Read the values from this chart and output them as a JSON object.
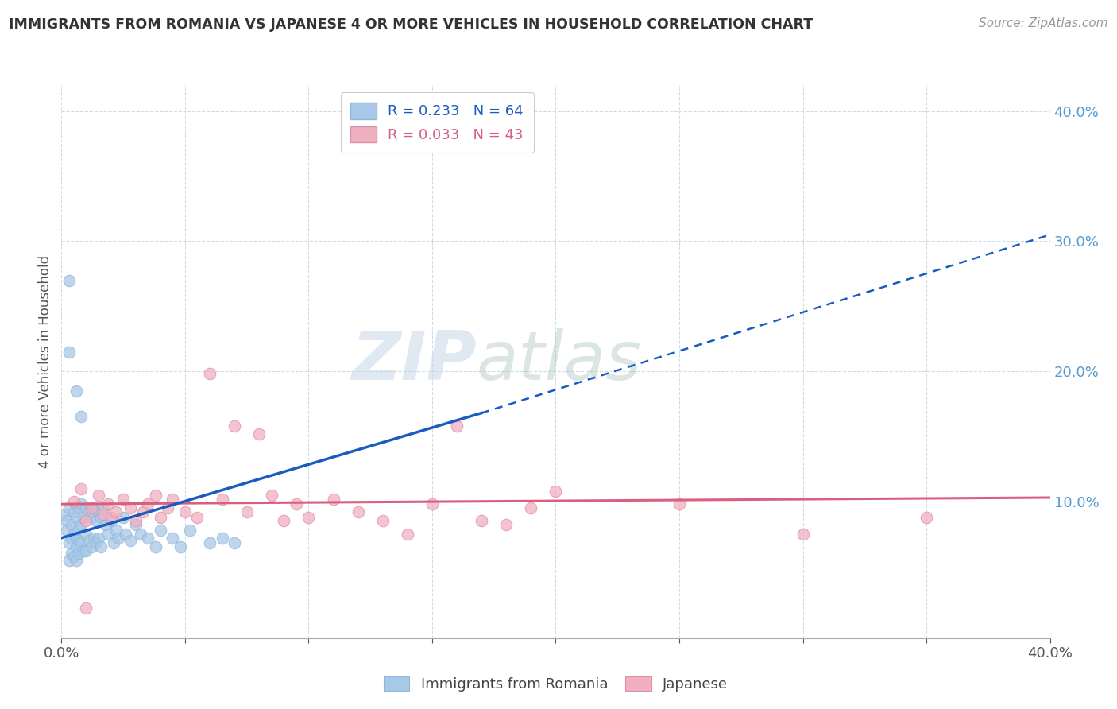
{
  "title": "IMMIGRANTS FROM ROMANIA VS JAPANESE 4 OR MORE VEHICLES IN HOUSEHOLD CORRELATION CHART",
  "source": "Source: ZipAtlas.com",
  "ylabel": "4 or more Vehicles in Household",
  "xlim": [
    0.0,
    0.4
  ],
  "ylim": [
    -0.005,
    0.42
  ],
  "xticks": [
    0.0,
    0.05,
    0.1,
    0.15,
    0.2,
    0.25,
    0.3,
    0.35,
    0.4
  ],
  "xticklabels": [
    "0.0%",
    "",
    "",
    "",
    "",
    "",
    "",
    "",
    "40.0%"
  ],
  "yticks": [
    0.1,
    0.2,
    0.3,
    0.4
  ],
  "yticklabels": [
    "10.0%",
    "20.0%",
    "30.0%",
    "40.0%"
  ],
  "romania_color": "#a8c8e8",
  "japan_color": "#f0b0c0",
  "romania_line_color": "#1a5bbf",
  "japan_line_color": "#d95f7f",
  "romania_R": 0.233,
  "romania_N": 64,
  "japan_R": 0.033,
  "japan_N": 43,
  "watermark_zip": "ZIP",
  "watermark_atlas": "atlas",
  "background_color": "#ffffff",
  "grid_color": "#c8d8e8",
  "romania_line_x0": 0.0,
  "romania_line_y0": 0.072,
  "romania_line_x1": 0.4,
  "romania_line_y1": 0.305,
  "romania_line_solid_x1": 0.17,
  "romania_line_solid_y1": 0.168,
  "japan_line_x0": 0.0,
  "japan_line_y0": 0.098,
  "japan_line_x1": 0.4,
  "japan_line_y1": 0.103,
  "romania_x": [
    0.001,
    0.002,
    0.002,
    0.003,
    0.003,
    0.003,
    0.004,
    0.004,
    0.004,
    0.005,
    0.005,
    0.005,
    0.006,
    0.006,
    0.006,
    0.007,
    0.007,
    0.007,
    0.007,
    0.008,
    0.008,
    0.008,
    0.009,
    0.009,
    0.01,
    0.01,
    0.01,
    0.011,
    0.011,
    0.012,
    0.012,
    0.013,
    0.013,
    0.014,
    0.014,
    0.015,
    0.015,
    0.016,
    0.016,
    0.017,
    0.018,
    0.019,
    0.02,
    0.021,
    0.022,
    0.023,
    0.025,
    0.026,
    0.028,
    0.03,
    0.032,
    0.035,
    0.038,
    0.04,
    0.045,
    0.048,
    0.052,
    0.06,
    0.065,
    0.07,
    0.003,
    0.003,
    0.006,
    0.008
  ],
  "romania_y": [
    0.09,
    0.085,
    0.078,
    0.095,
    0.068,
    0.055,
    0.082,
    0.072,
    0.06,
    0.092,
    0.075,
    0.058,
    0.088,
    0.065,
    0.055,
    0.095,
    0.08,
    0.07,
    0.06,
    0.098,
    0.082,
    0.068,
    0.088,
    0.062,
    0.095,
    0.075,
    0.062,
    0.092,
    0.07,
    0.088,
    0.065,
    0.095,
    0.072,
    0.085,
    0.068,
    0.092,
    0.072,
    0.088,
    0.065,
    0.095,
    0.082,
    0.075,
    0.085,
    0.068,
    0.078,
    0.072,
    0.088,
    0.075,
    0.07,
    0.082,
    0.075,
    0.072,
    0.065,
    0.078,
    0.072,
    0.065,
    0.078,
    0.068,
    0.072,
    0.068,
    0.27,
    0.215,
    0.185,
    0.165
  ],
  "japan_x": [
    0.005,
    0.008,
    0.01,
    0.012,
    0.015,
    0.017,
    0.019,
    0.02,
    0.022,
    0.025,
    0.028,
    0.03,
    0.033,
    0.035,
    0.038,
    0.04,
    0.043,
    0.045,
    0.05,
    0.055,
    0.06,
    0.065,
    0.07,
    0.075,
    0.08,
    0.085,
    0.09,
    0.095,
    0.1,
    0.11,
    0.12,
    0.13,
    0.14,
    0.15,
    0.16,
    0.17,
    0.18,
    0.19,
    0.2,
    0.25,
    0.3,
    0.35,
    0.01
  ],
  "japan_y": [
    0.1,
    0.11,
    0.085,
    0.095,
    0.105,
    0.09,
    0.098,
    0.088,
    0.092,
    0.102,
    0.095,
    0.085,
    0.092,
    0.098,
    0.105,
    0.088,
    0.095,
    0.102,
    0.092,
    0.088,
    0.198,
    0.102,
    0.158,
    0.092,
    0.152,
    0.105,
    0.085,
    0.098,
    0.088,
    0.102,
    0.092,
    0.085,
    0.075,
    0.098,
    0.158,
    0.085,
    0.082,
    0.095,
    0.108,
    0.098,
    0.075,
    0.088,
    0.018
  ]
}
